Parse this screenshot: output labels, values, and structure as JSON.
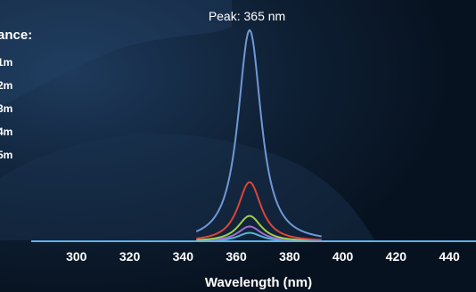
{
  "chart_data": {
    "type": "line",
    "title": "",
    "xlabel": "Wavelength (nm)",
    "ylabel": "",
    "annotation": "Peak: 365 nm",
    "legend_title": "ance:",
    "x_ticks": [
      300,
      320,
      340,
      360,
      380,
      400,
      420,
      440
    ],
    "xlim": [
      283,
      450
    ],
    "ylim": [
      0,
      1.0
    ],
    "peak_x": 365,
    "legend_placement": "left",
    "grid": false,
    "series": [
      {
        "name": "1m",
        "peak_x": 365,
        "peak_y": 1.0,
        "color": "#6f98d6"
      },
      {
        "name": "2m",
        "peak_x": 365,
        "peak_y": 0.28,
        "color": "#e0443a"
      },
      {
        "name": "3m",
        "peak_x": 365,
        "peak_y": 0.12,
        "color": "#9fcf4a"
      },
      {
        "name": "4m",
        "peak_x": 365,
        "peak_y": 0.07,
        "color": "#a06cd0"
      },
      {
        "name": "5m",
        "peak_x": 365,
        "peak_y": 0.04,
        "color": "#53b6d4"
      }
    ],
    "baseline_color": "#5fb0e8"
  }
}
